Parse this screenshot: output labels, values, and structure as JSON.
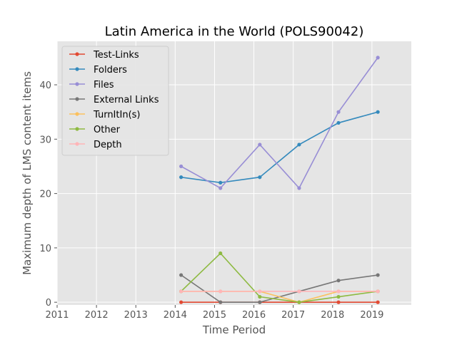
{
  "chart_data": {
    "type": "line",
    "title": "Latin America in the World (POLS90042)",
    "xlabel": "Time Period",
    "ylabel": "Maximum depth of LMS content items",
    "xlim": [
      2011,
      2020
    ],
    "ylim": [
      -0.5,
      48
    ],
    "xticks": [
      2011,
      2012,
      2013,
      2014,
      2015,
      2016,
      2017,
      2018,
      2019
    ],
    "yticks": [
      0,
      10,
      20,
      30,
      40
    ],
    "grid": true,
    "legend_position": "upper-left",
    "x": [
      2014.15,
      2015.15,
      2016.15,
      2017.15,
      2018.15,
      2019.15
    ],
    "series": [
      {
        "name": "Test-Links",
        "color": "#e24a33",
        "values": [
          0,
          0,
          0,
          0,
          0,
          0
        ]
      },
      {
        "name": "Folders",
        "color": "#348abd",
        "values": [
          23,
          22,
          23,
          29,
          33,
          35
        ]
      },
      {
        "name": "Files",
        "color": "#988ed5",
        "values": [
          25,
          21,
          29,
          21,
          35,
          45
        ]
      },
      {
        "name": "External Links",
        "color": "#777777",
        "values": [
          5,
          0,
          0,
          2,
          4,
          5
        ]
      },
      {
        "name": "TurnItIn(s)",
        "color": "#fbc15e",
        "values": [
          2,
          2,
          2,
          0,
          2,
          2
        ]
      },
      {
        "name": "Other",
        "color": "#8eba42",
        "values": [
          2,
          9,
          1,
          0,
          1,
          2
        ]
      },
      {
        "name": "Depth",
        "color": "#ffb5b8",
        "values": [
          2,
          2,
          2,
          2,
          2,
          2
        ]
      }
    ]
  }
}
